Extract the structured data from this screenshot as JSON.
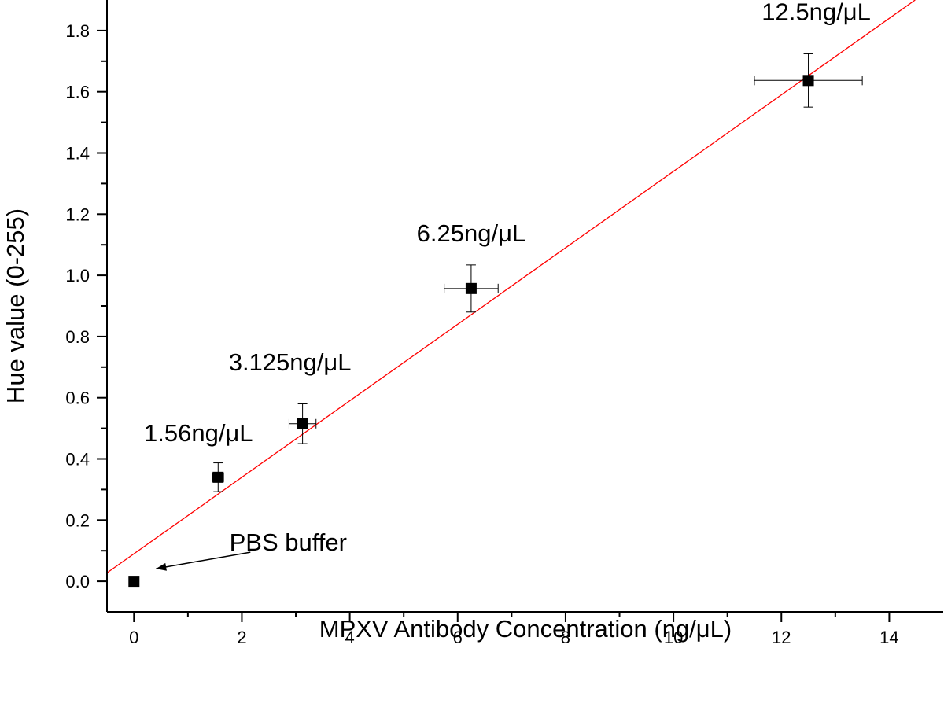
{
  "chart_data": {
    "type": "scatter",
    "title": "",
    "xlabel": "MPXV Antibody Concentration (ng/μL)",
    "ylabel": "Hue value (0-255)",
    "xlim": [
      -0.5,
      15
    ],
    "ylim": [
      -0.1,
      1.9
    ],
    "xticks": [
      0,
      2,
      4,
      6,
      8,
      10,
      12,
      14
    ],
    "yticks": [
      0.0,
      0.2,
      0.4,
      0.6,
      0.8,
      1.0,
      1.2,
      1.4,
      1.6,
      1.8
    ],
    "xtick_labels": [
      "0",
      "2",
      "4",
      "6",
      "8",
      "10",
      "12",
      "14"
    ],
    "ytick_labels": [
      "0.0",
      "0.2",
      "0.4",
      "0.6",
      "0.8",
      "1.0",
      "1.2",
      "1.4",
      "1.6",
      "1.8"
    ],
    "grid": false,
    "legend": "none",
    "series": [
      {
        "points": [
          {
            "x": 0,
            "y": 0.0,
            "xerr": 0,
            "yerr": 0
          },
          {
            "x": 1.56,
            "y": 0.34,
            "xerr": 0.1,
            "yerr": 0.047
          },
          {
            "x": 3.125,
            "y": 0.515,
            "xerr": 0.25,
            "yerr": 0.065
          },
          {
            "x": 6.25,
            "y": 0.957,
            "xerr": 0.5,
            "yerr": 0.077
          },
          {
            "x": 12.5,
            "y": 1.637,
            "xerr": 1.0,
            "yerr": 0.087
          }
        ],
        "marker_color": "#000000"
      }
    ],
    "fit_line": {
      "intercept": 0.09,
      "slope": 0.125,
      "color": "#ff0000"
    },
    "annotations": [
      {
        "text": "12.5ng/μL",
        "x": 12.5,
        "y": 1.637
      },
      {
        "text": "6.25ng/μL",
        "x": 6.25,
        "y": 0.957
      },
      {
        "text": "3.125ng/μL",
        "x": 3.125,
        "y": 0.515
      },
      {
        "text": "1.56ng/μL",
        "x": 1.56,
        "y": 0.34
      },
      {
        "text": "PBS buffer",
        "x": 0,
        "y": 0.0,
        "arrow": true
      }
    ]
  }
}
